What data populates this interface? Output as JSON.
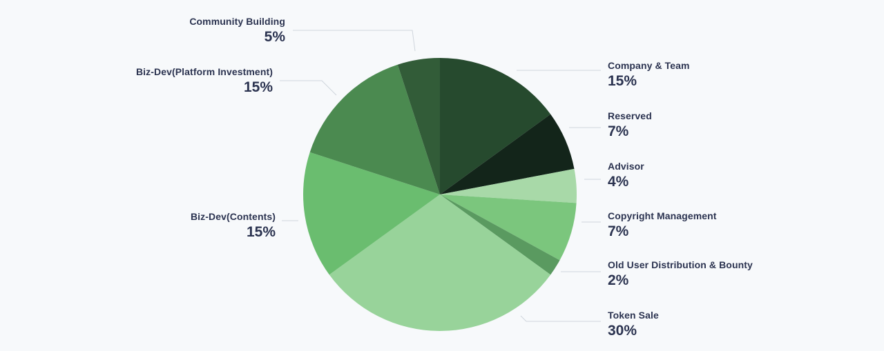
{
  "chart_data": {
    "type": "pie",
    "slices": [
      {
        "label": "Company & Team",
        "value": 15,
        "display": "15%",
        "color": "#264a2e"
      },
      {
        "label": "Reserved",
        "value": 7,
        "display": "7%",
        "color": "#13251a"
      },
      {
        "label": "Advisor",
        "value": 4,
        "display": "4%",
        "color": "#a8d9a8"
      },
      {
        "label": "Copyright Management",
        "value": 7,
        "display": "7%",
        "color": "#7bc67d"
      },
      {
        "label": "Old User Distribution & Bounty",
        "value": 2,
        "display": "2%",
        "color": "#5a9a60"
      },
      {
        "label": "Token Sale",
        "value": 30,
        "display": "30%",
        "color": "#98d39a"
      },
      {
        "label": "Biz-Dev(Contents)",
        "value": 15,
        "display": "15%",
        "color": "#6abd6f"
      },
      {
        "label": "Biz-Dev(Platform Investment)",
        "value": 15,
        "display": "15%",
        "color": "#4b8a50"
      },
      {
        "label": "Community Building",
        "value": 5,
        "display": "5%",
        "color": "#325c38"
      }
    ]
  }
}
